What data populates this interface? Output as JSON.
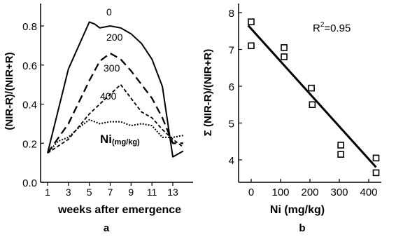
{
  "chart_data": [
    {
      "panel_label": "a",
      "type": "line",
      "xlabel": "weeks after emergence",
      "ylabel": "(NIR-R)/(NIR+R)",
      "xlim": [
        0,
        14
      ],
      "ylim": [
        0.0,
        0.85
      ],
      "xticks": [
        "1",
        "3",
        "5",
        "7",
        "9",
        "11",
        "13"
      ],
      "yticks": [
        "0.0",
        "0.2",
        "0.4",
        "0.6",
        "0.8"
      ],
      "legend_title": {
        "base": "Ni",
        "sub": "(mg/kg)"
      },
      "grid": false,
      "series": [
        {
          "name": "0",
          "style": "solid",
          "x": [
            1,
            3,
            5,
            5.5,
            6,
            7,
            8,
            9,
            10,
            11,
            12,
            13,
            14
          ],
          "y": [
            0.15,
            0.58,
            0.82,
            0.81,
            0.79,
            0.8,
            0.79,
            0.76,
            0.71,
            0.63,
            0.49,
            0.13,
            0.16
          ]
        },
        {
          "name": "200",
          "style": "long-dash",
          "x": [
            1,
            3,
            5,
            6,
            7,
            8,
            9,
            10,
            11,
            12,
            13,
            14
          ],
          "y": [
            0.15,
            0.3,
            0.52,
            0.62,
            0.66,
            0.63,
            0.57,
            0.5,
            0.43,
            0.33,
            0.2,
            0.2
          ]
        },
        {
          "name": "300",
          "style": "short-dash",
          "x": [
            1,
            3,
            5,
            6,
            7,
            8,
            9,
            10,
            11,
            12,
            13,
            14
          ],
          "y": [
            0.15,
            0.22,
            0.35,
            0.4,
            0.45,
            0.5,
            0.43,
            0.36,
            0.33,
            0.27,
            0.22,
            0.18
          ]
        },
        {
          "name": "400",
          "style": "dotted",
          "x": [
            1,
            2,
            3,
            4,
            5,
            6,
            7,
            8,
            9,
            10,
            11,
            12,
            13,
            14
          ],
          "y": [
            0.15,
            0.21,
            0.23,
            0.28,
            0.32,
            0.3,
            0.31,
            0.31,
            0.29,
            0.3,
            0.29,
            0.23,
            0.23,
            0.24
          ]
        }
      ]
    },
    {
      "panel_label": "b",
      "type": "scatter",
      "xlabel": "Ni (mg/kg)",
      "ylabel": "Σ (NIR-R)/(NIR+R)",
      "xlim": [
        -25,
        440
      ],
      "ylim": [
        3.5,
        8.1
      ],
      "xticks": [
        "0",
        "100",
        "200",
        "300",
        "400"
      ],
      "yticks": [
        "4",
        "5",
        "6",
        "7",
        "8"
      ],
      "annotation": {
        "base": "R",
        "sup": "2",
        "rest": "=0.95"
      },
      "grid": false,
      "points": {
        "x": [
          0,
          0,
          112,
          112,
          205,
          208,
          305,
          305,
          425,
          425
        ],
        "y": [
          7.75,
          7.1,
          7.05,
          6.8,
          5.95,
          5.5,
          4.4,
          4.15,
          4.05,
          3.65
        ]
      },
      "fit_line": {
        "x": [
          -10,
          425
        ],
        "y": [
          7.65,
          3.8
        ]
      }
    }
  ]
}
